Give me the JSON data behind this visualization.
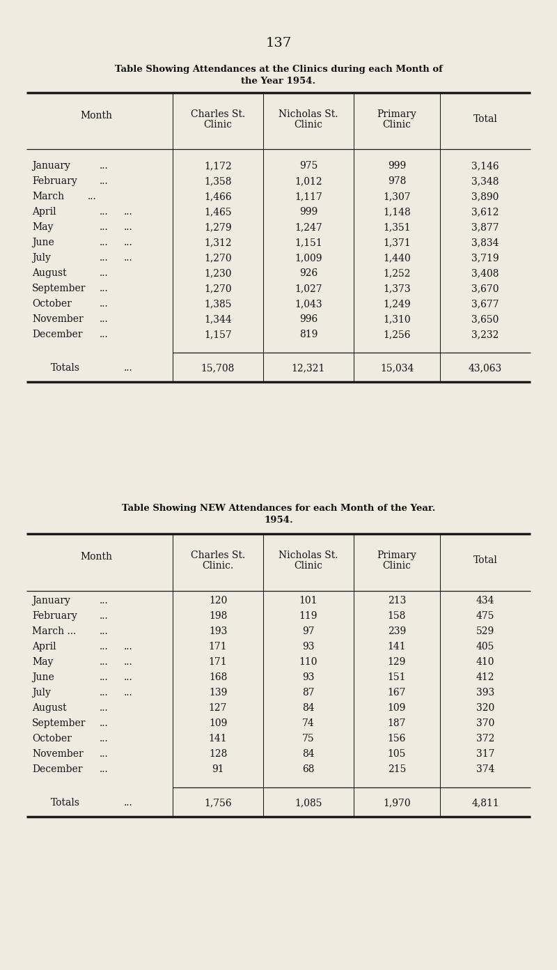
{
  "page_number": "137",
  "bg_color": "#f0ebe0",
  "title1_line1": "Table Showing Attendances at the Clinics during each Month of",
  "title1_line2": "the Year 1954.",
  "title2_line1": "Table Showing NEW Attendances for each Month of the Year.",
  "title2_line2": "1954.",
  "table1_col_h1": [
    "Charles St.",
    "Nicholas St.",
    "Primary",
    "Total"
  ],
  "table1_col_h2": [
    "Clinic",
    "Clinic",
    "Clinic",
    ""
  ],
  "table2_col_h1": [
    "Charles St.",
    "Nicholas St.",
    "Primary",
    "Total"
  ],
  "table2_col_h2": [
    "Clinic.",
    "Clinic",
    "Clinic",
    ""
  ],
  "table1_months": [
    "January",
    "February",
    "March",
    "April",
    "May",
    "June",
    "July",
    "August",
    "September",
    "October",
    "November",
    "December"
  ],
  "table1_month_dots": [
    true,
    true,
    true,
    true,
    true,
    true,
    true,
    true,
    true,
    true,
    true,
    true
  ],
  "table1_march_extra": [
    false,
    false,
    true,
    false,
    false,
    false,
    false,
    false,
    false,
    false,
    false,
    false
  ],
  "table1_april_extra": [
    false,
    false,
    false,
    true,
    true,
    true,
    true,
    false,
    false,
    false,
    false,
    false
  ],
  "table1_charles": [
    "1,172",
    "1,358",
    "1,466",
    "1,465",
    "1,279",
    "1,312",
    "1,270",
    "1,230",
    "1,270",
    "1,385",
    "1,344",
    "1,157"
  ],
  "table1_nicholas": [
    "975",
    "1,012",
    "1,117",
    "999",
    "1,247",
    "1,151",
    "1,009",
    "926",
    "1,027",
    "1,043",
    "996",
    "819"
  ],
  "table1_primary": [
    "999",
    "978",
    "1,307",
    "1,148",
    "1,351",
    "1,371",
    "1,440",
    "1,252",
    "1,373",
    "1,249",
    "1,310",
    "1,256"
  ],
  "table1_total": [
    "3,146",
    "3,348",
    "3,890",
    "3,612",
    "3,877",
    "3,834",
    "3,719",
    "3,408",
    "3,670",
    "3,677",
    "3,650",
    "3,232"
  ],
  "table1_totals": [
    "15,708",
    "12,321",
    "15,034",
    "43,063"
  ],
  "table2_months": [
    "January",
    "February",
    "March ...",
    "April",
    "May",
    "June",
    "July",
    "August",
    "September",
    "October",
    "November",
    "December"
  ],
  "table2_charles": [
    "120",
    "198",
    "193",
    "171",
    "171",
    "168",
    "139",
    "127",
    "109",
    "141",
    "128",
    "91"
  ],
  "table2_nicholas": [
    "101",
    "119",
    "97",
    "93",
    "110",
    "93",
    "87",
    "84",
    "74",
    "75",
    "84",
    "68"
  ],
  "table2_primary": [
    "213",
    "158",
    "239",
    "141",
    "129",
    "151",
    "167",
    "109",
    "187",
    "156",
    "105",
    "215"
  ],
  "table2_total": [
    "434",
    "475",
    "529",
    "405",
    "410",
    "412",
    "393",
    "320",
    "370",
    "372",
    "317",
    "374"
  ],
  "table2_totals": [
    "1,756",
    "1,085",
    "1,970",
    "4,811"
  ]
}
